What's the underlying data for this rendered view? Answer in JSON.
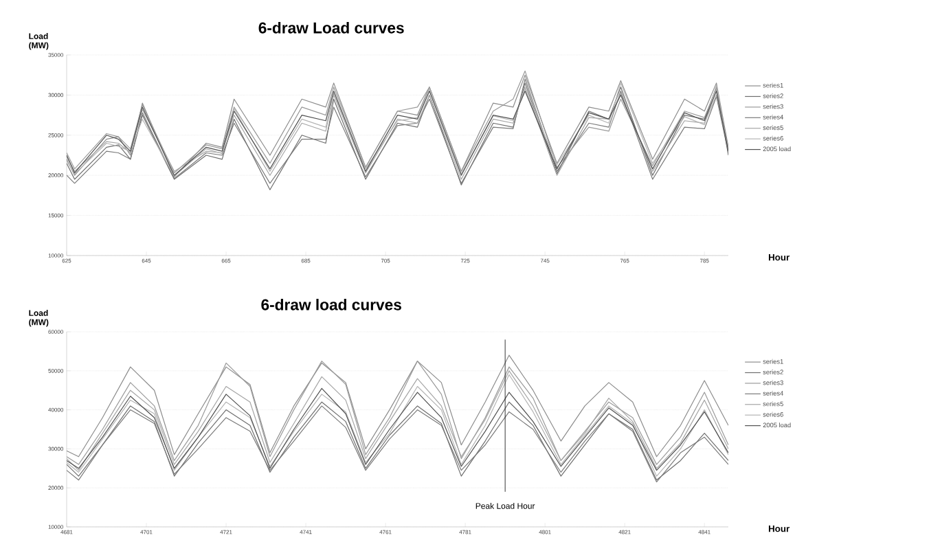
{
  "chart_data": [
    {
      "type": "line",
      "title": "6-draw Load curves",
      "xlabel": "Hour",
      "ylabel": "Load (MW)",
      "xlim": [
        625,
        791
      ],
      "ylim": [
        10000,
        35000
      ],
      "xticks": [
        625,
        645,
        665,
        685,
        705,
        725,
        745,
        765,
        785
      ],
      "yticks": [
        10000,
        15000,
        20000,
        25000,
        30000,
        35000
      ],
      "grid": "y",
      "legend": "right",
      "x": [
        625,
        627,
        635,
        638,
        641,
        644,
        652,
        660,
        664,
        667,
        676,
        684,
        690,
        692,
        700,
        708,
        713,
        716,
        724,
        732,
        737,
        740,
        748,
        756,
        761,
        764,
        772,
        780,
        785,
        788,
        791
      ],
      "series": [
        {
          "name": "series1",
          "color": "#8c8c8c",
          "values": [
            22000,
            20000,
            24500,
            24800,
            22500,
            29000,
            19800,
            24000,
            23500,
            29500,
            22500,
            29500,
            28500,
            31500,
            21000,
            28000,
            27500,
            31000,
            20500,
            29000,
            28500,
            32500,
            21500,
            28500,
            28000,
            31800,
            22000,
            29500,
            28000,
            31500,
            23500
          ]
        },
        {
          "name": "series2",
          "color": "#6e6e6e",
          "values": [
            21500,
            19500,
            23500,
            23800,
            22000,
            27500,
            19500,
            22500,
            22000,
            27000,
            18200,
            25000,
            24000,
            29500,
            19500,
            26500,
            26000,
            30000,
            18800,
            26500,
            26000,
            31500,
            20200,
            28000,
            27000,
            31000,
            20000,
            27500,
            27000,
            31000,
            22500
          ]
        },
        {
          "name": "series3",
          "color": "#9a9a9a",
          "values": [
            22800,
            20800,
            25200,
            24800,
            23300,
            28800,
            20300,
            23800,
            23300,
            28500,
            21500,
            28500,
            27500,
            31000,
            21000,
            28000,
            28500,
            31000,
            20500,
            28000,
            29500,
            33000,
            21000,
            26000,
            25500,
            29500,
            21200,
            28000,
            27200,
            30800,
            23200
          ]
        },
        {
          "name": "series4",
          "color": "#7a7a7a",
          "values": [
            20000,
            19000,
            23000,
            22800,
            22000,
            27800,
            19600,
            22800,
            22500,
            26500,
            19000,
            24500,
            24500,
            28500,
            19800,
            26200,
            26500,
            29500,
            19000,
            26000,
            25800,
            32000,
            20500,
            26500,
            26000,
            30500,
            19500,
            26000,
            25800,
            29800,
            22800
          ]
        },
        {
          "name": "series5",
          "color": "#a5a5a5",
          "values": [
            22300,
            20500,
            24200,
            24000,
            22800,
            28200,
            20500,
            23000,
            22800,
            27500,
            20000,
            26500,
            25500,
            30000,
            20300,
            27000,
            26500,
            30000,
            19500,
            27000,
            26500,
            31000,
            20000,
            27200,
            27000,
            30200,
            20500,
            26800,
            26500,
            30000,
            23300
          ]
        },
        {
          "name": "series6",
          "color": "#b4b4b4",
          "values": [
            21800,
            20200,
            24000,
            23600,
            23000,
            27000,
            19900,
            23300,
            22700,
            28300,
            20500,
            27000,
            26000,
            30200,
            20800,
            26800,
            27200,
            30800,
            20200,
            27400,
            26800,
            30800,
            21300,
            27500,
            26500,
            31500,
            21500,
            27300,
            26300,
            31200,
            23000
          ]
        },
        {
          "name": "2005 load",
          "color": "#505050",
          "values": [
            22500,
            20300,
            25000,
            24500,
            23000,
            28500,
            20000,
            23500,
            23000,
            28000,
            20800,
            27500,
            26800,
            30500,
            20500,
            27500,
            27000,
            30500,
            20000,
            27500,
            27000,
            30500,
            20800,
            27800,
            27000,
            30000,
            20800,
            27800,
            26800,
            30500,
            23000
          ]
        }
      ]
    },
    {
      "type": "line",
      "title": "6-draw load curves",
      "xlabel": "Hour",
      "ylabel": "Load (MW)",
      "xlim": [
        4681,
        4847
      ],
      "ylim": [
        10000,
        60000
      ],
      "xticks": [
        4681,
        4701,
        4721,
        4741,
        4761,
        4781,
        4801,
        4821,
        4841
      ],
      "yticks": [
        10000,
        20000,
        30000,
        40000,
        50000,
        60000
      ],
      "grid": "y",
      "legend": "right",
      "x": [
        4681,
        4684,
        4690,
        4697,
        4703,
        4708,
        4714,
        4721,
        4727,
        4732,
        4738,
        4745,
        4751,
        4756,
        4762,
        4769,
        4775,
        4780,
        4786,
        4792,
        4798,
        4805,
        4811,
        4817,
        4823,
        4829,
        4835,
        4841,
        4847
      ],
      "ref_lines": [
        {
          "axis": "x",
          "value": 4791,
          "label": "Peak Load Hour",
          "color": "#000000"
        }
      ],
      "series": [
        {
          "name": "series1",
          "color": "#8c8c8c",
          "values": [
            29500,
            28000,
            38000,
            51000,
            45000,
            28500,
            39000,
            51000,
            46500,
            29000,
            41000,
            52000,
            47000,
            30000,
            40000,
            52500,
            47000,
            31000,
            42000,
            54000,
            45000,
            32000,
            41000,
            47000,
            42000,
            28000,
            36000,
            47500,
            36000
          ]
        },
        {
          "name": "series2",
          "color": "#6e6e6e",
          "values": [
            26000,
            23000,
            31000,
            41000,
            37000,
            23000,
            31500,
            40000,
            36000,
            24000,
            33000,
            42000,
            37000,
            25000,
            33500,
            41000,
            36500,
            23000,
            32000,
            42000,
            36000,
            23000,
            31000,
            39000,
            35000,
            22000,
            27000,
            34000,
            27000
          ]
        },
        {
          "name": "series3",
          "color": "#9a9a9a",
          "values": [
            28000,
            26000,
            35000,
            47000,
            41000,
            27000,
            36000,
            52000,
            46000,
            28000,
            40000,
            52500,
            46500,
            28500,
            38000,
            52500,
            44000,
            27500,
            38000,
            51000,
            43000,
            27000,
            34500,
            42000,
            38000,
            26000,
            33000,
            44500,
            31000
          ]
        },
        {
          "name": "series4",
          "color": "#7a7a7a",
          "values": [
            24500,
            22000,
            31000,
            40000,
            36500,
            23500,
            30000,
            38000,
            34500,
            24500,
            32000,
            41000,
            35500,
            24500,
            32500,
            40000,
            36000,
            24500,
            31000,
            39500,
            35000,
            24000,
            32000,
            39000,
            34500,
            21500,
            29000,
            33000,
            26000
          ]
        },
        {
          "name": "series5",
          "color": "#a5a5a5",
          "values": [
            27500,
            24500,
            34000,
            45000,
            40000,
            26000,
            34500,
            46000,
            42000,
            26500,
            36500,
            48500,
            42500,
            27500,
            37000,
            48000,
            41000,
            28000,
            37500,
            50000,
            41000,
            27000,
            34000,
            43000,
            37000,
            25000,
            31500,
            42500,
            30000
          ]
        },
        {
          "name": "series6",
          "color": "#b4b4b4",
          "values": [
            26500,
            24000,
            32500,
            42500,
            39000,
            24500,
            33000,
            42000,
            38000,
            25500,
            34500,
            44000,
            39500,
            26500,
            34000,
            46000,
            40000,
            26000,
            36000,
            49000,
            39500,
            26000,
            33500,
            41000,
            36500,
            23000,
            30000,
            40000,
            28500
          ]
        },
        {
          "name": "2005 load",
          "color": "#505050",
          "values": [
            27000,
            25000,
            33000,
            43500,
            38000,
            25000,
            33000,
            44000,
            38500,
            25000,
            35000,
            45500,
            39000,
            26000,
            35000,
            44500,
            38000,
            25500,
            34500,
            44500,
            37000,
            25500,
            33000,
            40500,
            36000,
            24500,
            31000,
            39500,
            29000
          ]
        }
      ]
    }
  ]
}
